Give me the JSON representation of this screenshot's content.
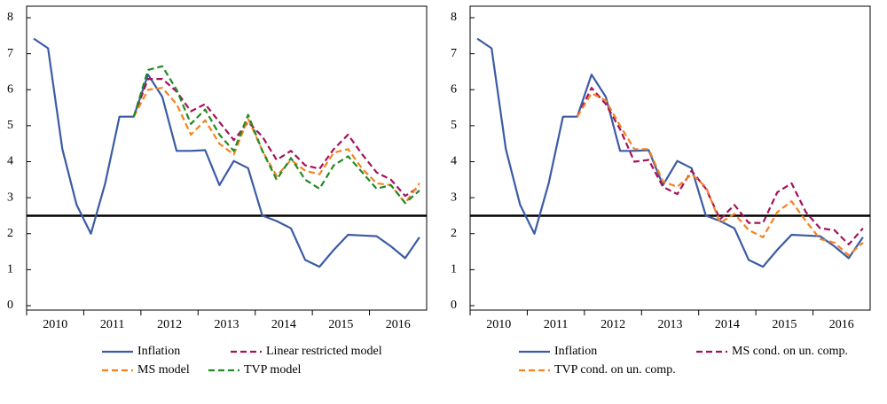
{
  "chart_data": [
    {
      "type": "line",
      "categories": [
        "2010",
        null,
        null,
        null,
        "2011",
        null,
        null,
        null,
        "2012",
        null,
        null,
        null,
        "2013",
        null,
        null,
        null,
        "2014",
        null,
        null,
        null,
        "2015",
        null,
        null,
        null,
        "2016",
        null,
        null,
        null
      ],
      "ylim": [
        0,
        8
      ],
      "yticks": [
        0,
        1,
        2,
        3,
        4,
        5,
        6,
        7,
        8
      ],
      "hline": 2.5,
      "series": [
        {
          "name": "Inflation",
          "color": "#3b5ba5",
          "style": "solid",
          "values": [
            7.42,
            7.15,
            4.35,
            2.8,
            2.0,
            3.4,
            5.25,
            5.25,
            6.42,
            5.8,
            4.3,
            4.3,
            4.32,
            3.35,
            4.02,
            3.82,
            2.5,
            2.35,
            2.15,
            1.27,
            1.08,
            1.55,
            1.97,
            1.95,
            1.93,
            1.65,
            1.32,
            1.9
          ]
        },
        {
          "name": "Linear restricted model",
          "color": "#a3125c",
          "style": "dashed",
          "values": [
            null,
            null,
            null,
            null,
            null,
            null,
            null,
            5.25,
            6.3,
            6.3,
            5.95,
            5.4,
            5.6,
            5.1,
            4.6,
            5.1,
            4.7,
            4.05,
            4.3,
            3.9,
            3.8,
            4.35,
            4.75,
            4.2,
            3.7,
            3.5,
            3.05,
            3.3
          ]
        },
        {
          "name": "MS model",
          "color": "#f5821f",
          "style": "dashed",
          "values": [
            null,
            null,
            null,
            null,
            null,
            null,
            null,
            5.25,
            6.0,
            6.05,
            5.6,
            4.75,
            5.15,
            4.5,
            4.2,
            5.2,
            4.3,
            3.6,
            4.05,
            3.75,
            3.65,
            4.25,
            4.35,
            3.8,
            3.4,
            3.35,
            2.85,
            3.4
          ]
        },
        {
          "name": "TVP model",
          "color": "#1f8a24",
          "style": "dashed",
          "values": [
            null,
            null,
            null,
            null,
            null,
            null,
            null,
            5.25,
            6.55,
            6.65,
            6.0,
            5.05,
            5.45,
            4.75,
            4.3,
            5.3,
            4.3,
            3.5,
            4.1,
            3.5,
            3.25,
            3.9,
            4.15,
            3.7,
            3.25,
            3.35,
            2.85,
            3.2
          ]
        }
      ]
    },
    {
      "type": "line",
      "categories": [
        "2010",
        null,
        null,
        null,
        "2011",
        null,
        null,
        null,
        "2012",
        null,
        null,
        null,
        "2013",
        null,
        null,
        null,
        "2014",
        null,
        null,
        null,
        "2015",
        null,
        null,
        null,
        "2016",
        null,
        null,
        null
      ],
      "ylim": [
        0,
        8
      ],
      "yticks": [
        0,
        1,
        2,
        3,
        4,
        5,
        6,
        7,
        8
      ],
      "hline": 2.5,
      "series": [
        {
          "name": "Inflation",
          "color": "#3b5ba5",
          "style": "solid",
          "values": [
            7.42,
            7.15,
            4.35,
            2.8,
            2.0,
            3.4,
            5.25,
            5.25,
            6.42,
            5.8,
            4.3,
            4.3,
            4.32,
            3.35,
            4.02,
            3.82,
            2.5,
            2.35,
            2.15,
            1.27,
            1.08,
            1.55,
            1.97,
            1.95,
            1.93,
            1.65,
            1.32,
            1.9
          ]
        },
        {
          "name": "MS cond. on un. comp.",
          "color": "#a3125c",
          "style": "dashed",
          "values": [
            null,
            null,
            null,
            null,
            null,
            null,
            null,
            5.25,
            6.05,
            5.6,
            4.9,
            4.0,
            4.05,
            3.3,
            3.1,
            3.75,
            3.25,
            2.4,
            2.8,
            2.3,
            2.3,
            3.15,
            3.4,
            2.6,
            2.15,
            2.1,
            1.7,
            2.15
          ]
        },
        {
          "name": "TVP cond. on un. comp.",
          "color": "#f5821f",
          "style": "dashed",
          "values": [
            null,
            null,
            null,
            null,
            null,
            null,
            null,
            5.25,
            5.9,
            5.7,
            5.0,
            4.35,
            4.35,
            3.45,
            3.3,
            3.65,
            3.3,
            2.3,
            2.55,
            2.1,
            1.9,
            2.6,
            2.9,
            2.35,
            1.85,
            1.75,
            1.4,
            1.75
          ]
        }
      ]
    }
  ]
}
